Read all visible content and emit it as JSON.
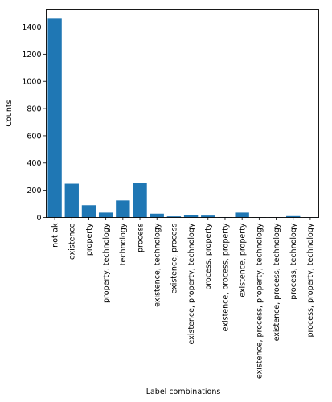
{
  "chart_data": {
    "type": "bar",
    "title": "",
    "xlabel": "Label combinations",
    "ylabel": "Counts",
    "ylim": [
      0,
      1530
    ],
    "yticks": [
      0,
      200,
      400,
      600,
      800,
      1000,
      1200,
      1400
    ],
    "grid": false,
    "legend": "none",
    "bar_color": "#1f77b4",
    "categories": [
      "not-ak",
      "existence",
      "property",
      "property, technology",
      "technology",
      "process",
      "existence, technology",
      "existence, process",
      "existence, property, technology",
      "process, property",
      "existence, process, property",
      "existence, property",
      "existence, process, property, technology",
      "existence, process, technology",
      "process, technology",
      "process, property, technology"
    ],
    "values": [
      1460,
      248,
      90,
      36,
      125,
      253,
      28,
      8,
      18,
      14,
      3,
      36,
      2,
      2,
      10,
      2
    ]
  }
}
